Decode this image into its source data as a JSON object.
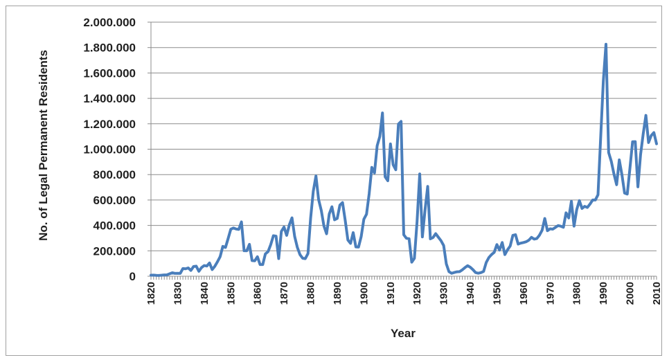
{
  "chart_data": {
    "type": "line",
    "title": "",
    "xlabel": "Year",
    "ylabel": "No. of Legal Permanent Residents",
    "ylim": [
      0,
      2000000
    ],
    "xlim": [
      1820,
      2010
    ],
    "grid": true,
    "legend": "none",
    "y_ticks": [
      "0",
      "200.000",
      "400.000",
      "600.000",
      "800.000",
      "1.000.000",
      "1.200.000",
      "1.400.000",
      "1.600.000",
      "1.800.000",
      "2.000.000"
    ],
    "x_ticks": [
      "1820",
      "1830",
      "1840",
      "1850",
      "1860",
      "1870",
      "1880",
      "1890",
      "1900",
      "1910",
      "1920",
      "1930",
      "1940",
      "1950",
      "1960",
      "1970",
      "1980",
      "1990",
      "2000",
      "2010"
    ],
    "series_color": "#4a7ebb",
    "x": [
      1820,
      1821,
      1822,
      1823,
      1824,
      1825,
      1826,
      1827,
      1828,
      1829,
      1830,
      1831,
      1832,
      1833,
      1834,
      1835,
      1836,
      1837,
      1838,
      1839,
      1840,
      1841,
      1842,
      1843,
      1844,
      1845,
      1846,
      1847,
      1848,
      1849,
      1850,
      1851,
      1852,
      1853,
      1854,
      1855,
      1856,
      1857,
      1858,
      1859,
      1860,
      1861,
      1862,
      1863,
      1864,
      1865,
      1866,
      1867,
      1868,
      1869,
      1870,
      1871,
      1872,
      1873,
      1874,
      1875,
      1876,
      1877,
      1878,
      1879,
      1880,
      1881,
      1882,
      1883,
      1884,
      1885,
      1886,
      1887,
      1888,
      1889,
      1890,
      1891,
      1892,
      1893,
      1894,
      1895,
      1896,
      1897,
      1898,
      1899,
      1900,
      1901,
      1902,
      1903,
      1904,
      1905,
      1906,
      1907,
      1908,
      1909,
      1910,
      1911,
      1912,
      1913,
      1914,
      1915,
      1916,
      1917,
      1918,
      1919,
      1920,
      1921,
      1922,
      1923,
      1924,
      1925,
      1926,
      1927,
      1928,
      1929,
      1930,
      1931,
      1932,
      1933,
      1934,
      1935,
      1936,
      1937,
      1938,
      1939,
      1940,
      1941,
      1942,
      1943,
      1944,
      1945,
      1946,
      1947,
      1948,
      1949,
      1950,
      1951,
      1952,
      1953,
      1954,
      1955,
      1956,
      1957,
      1958,
      1959,
      1960,
      1961,
      1962,
      1963,
      1964,
      1965,
      1966,
      1967,
      1968,
      1969,
      1970,
      1971,
      1972,
      1973,
      1974,
      1975,
      1976,
      1977,
      1978,
      1979,
      1980,
      1981,
      1982,
      1983,
      1984,
      1985,
      1986,
      1987,
      1988,
      1989,
      1990,
      1991,
      1992,
      1993,
      1994,
      1995,
      1996,
      1997,
      1998,
      1999,
      2000,
      2001,
      2002,
      2003,
      2004,
      2005,
      2006,
      2007,
      2008,
      2009,
      2010
    ],
    "y": [
      8385,
      9127,
      6911,
      6354,
      7912,
      10199,
      10837,
      18875,
      27382,
      22520,
      23322,
      22633,
      60482,
      58640,
      65365,
      45374,
      76242,
      79340,
      38914,
      68069,
      84066,
      80289,
      104565,
      52496,
      78615,
      114371,
      154416,
      234968,
      226527,
      297024,
      369980,
      379466,
      371603,
      368645,
      427833,
      200877,
      200436,
      251306,
      123126,
      121282,
      153640,
      91918,
      91985,
      176282,
      193418,
      248120,
      318568,
      315722,
      138840,
      352768,
      387203,
      321350,
      404806,
      459803,
      313339,
      227498,
      169986,
      141857,
      138469,
      177826,
      457257,
      669431,
      788992,
      603322,
      518592,
      395346,
      334203,
      490109,
      546889,
      444427,
      455302,
      560319,
      579663,
      439730,
      285631,
      258536,
      343267,
      230832,
      229299,
      311715,
      448572,
      487918,
      648743,
      857046,
      812870,
      1026499,
      1100735,
      1285349,
      782870,
      751786,
      1041570,
      878587,
      838172,
      1197892,
      1218480,
      326700,
      298826,
      295403,
      110618,
      141132,
      430001,
      805228,
      309556,
      522919,
      706896,
      294314,
      304488,
      335175,
      307255,
      279678,
      241700,
      97139,
      35576,
      23068,
      29470,
      34956,
      36329,
      50244,
      67895,
      82998,
      70756,
      51776,
      28781,
      23725,
      28551,
      38119,
      108721,
      147292,
      170570,
      188317,
      249187,
      205717,
      265520,
      170434,
      208177,
      237790,
      321625,
      326867,
      253265,
      260686,
      265398,
      271344,
      283763,
      306260,
      292248,
      296697,
      323040,
      361972,
      454448,
      358579,
      373326,
      370478,
      384685,
      398515,
      393919,
      385378,
      499093,
      458755,
      589810,
      394244,
      524295,
      595014,
      533624,
      550052,
      541811,
      568149,
      600027,
      599889,
      641346,
      1090172,
      1535872,
      1826595,
      973977,
      904292,
      804416,
      720461,
      915900,
      798378,
      654451,
      646568,
      849807,
      1058902,
      1059356,
      703542,
      957883,
      1122257,
      1266129,
      1052415,
      1107126,
      1130818,
      1042625
    ]
  }
}
